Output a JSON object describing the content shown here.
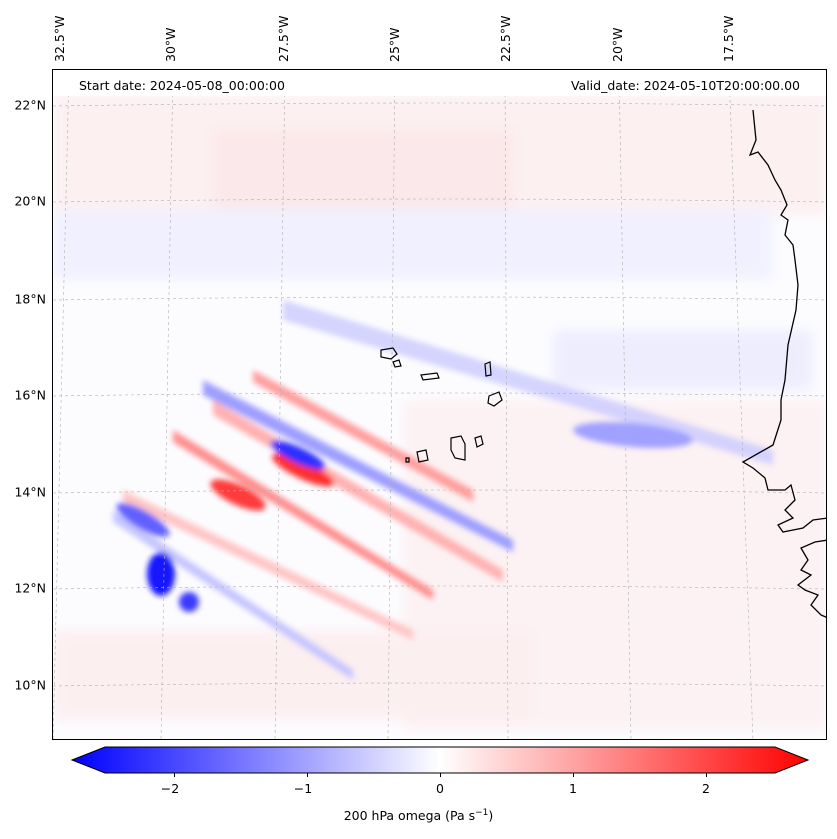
{
  "map": {
    "start_label": "Start date: 2024-05-08_00:00:00",
    "valid_label": "Valid_date: 2024-05-10T20:00:00.00",
    "lon_ticks": [
      "32.5°W",
      "30°W",
      "27.5°W",
      "25°W",
      "22.5°W",
      "20°W",
      "17.5°W"
    ],
    "lat_ticks": [
      "22°N",
      "20°N",
      "18°N",
      "16°N",
      "14°N",
      "12°N",
      "10°N"
    ],
    "colors": {
      "negative": "#0000ff",
      "neutral": "#ffffff",
      "positive": "#ff0000",
      "coast": "#000000",
      "grid": "#b0b0b0"
    }
  },
  "colorbar": {
    "ticks": [
      "−2",
      "−1",
      "0",
      "1",
      "2"
    ],
    "range": [
      -2.6,
      2.6
    ],
    "label": "200 hPa omega (Pa s",
    "label_exp": "−1",
    "label_close": ")"
  }
}
